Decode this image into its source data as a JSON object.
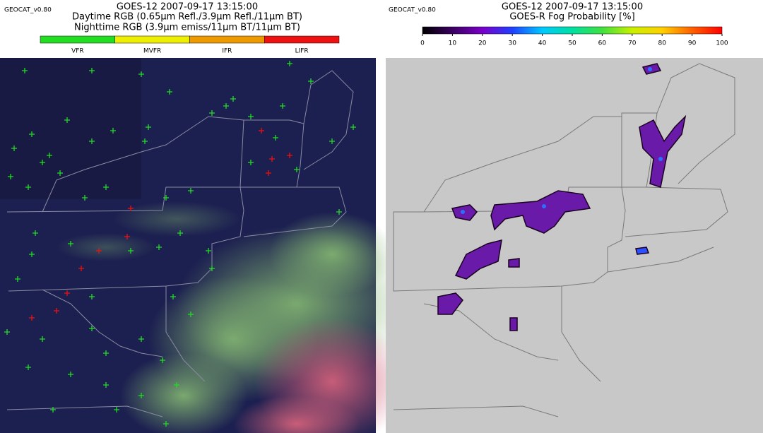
{
  "left_panel": {
    "version": "GEOCAT_v0.80",
    "title": "GOES-12 2007-09-17 13:15:00",
    "subtitle_day": "Daytime RGB (0.65μm Refl./3.9μm Refl./11μm BT)",
    "subtitle_night": "Nighttime RGB (3.9μm emiss/11μm BT/11μm BT)",
    "legend": [
      {
        "label": "VFR",
        "color": "#22dd22"
      },
      {
        "label": "MVFR",
        "color": "#eeee00"
      },
      {
        "label": "IFR",
        "color": "#ee9900"
      },
      {
        "label": "LIFR",
        "color": "#ee1111"
      }
    ]
  },
  "right_panel": {
    "version": "GEOCAT_v0.80",
    "title": "GOES-12 2007-09-17 13:15:00",
    "subtitle": "GOES-R Fog Probability [%]",
    "colorbar_ticks": [
      0,
      10,
      20,
      30,
      40,
      50,
      60,
      70,
      80,
      90,
      100
    ]
  }
}
